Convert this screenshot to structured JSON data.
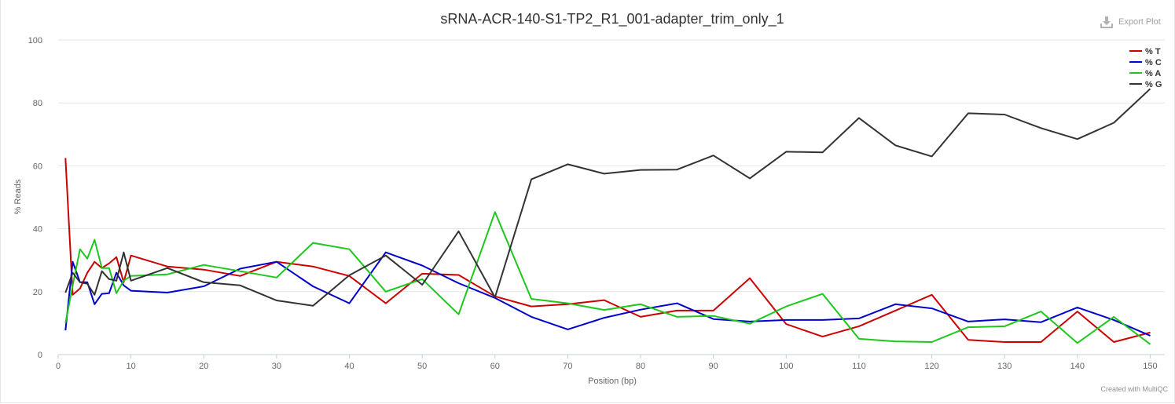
{
  "export": {
    "label": "Export Plot",
    "icon": "download-icon"
  },
  "credit": "Created with MultiQC",
  "chart_data": {
    "type": "line",
    "title": "sRNA-ACR-140-S1-TP2_R1_001-adapter_trim_only_1",
    "xlabel": "Position (bp)",
    "ylabel": "% Reads",
    "xlim": [
      0,
      152
    ],
    "ylim": [
      0,
      100
    ],
    "xticks": [
      0,
      10,
      20,
      30,
      40,
      50,
      60,
      70,
      80,
      90,
      100,
      110,
      120,
      130,
      140,
      150
    ],
    "yticks": [
      0,
      20,
      40,
      60,
      80,
      100
    ],
    "grid": true,
    "legend_position": "top-right",
    "x": [
      1,
      2,
      3,
      4,
      5,
      6,
      7,
      8,
      9,
      10,
      15,
      20,
      25,
      30,
      35,
      40,
      45,
      50,
      55,
      60,
      65,
      70,
      75,
      80,
      85,
      90,
      95,
      100,
      105,
      110,
      115,
      120,
      125,
      130,
      135,
      140,
      145,
      150
    ],
    "series": [
      {
        "name": "% T",
        "color": "#cc0000",
        "values": [
          62.5,
          19,
          21,
          26,
          29.5,
          27.5,
          29,
          31,
          23,
          31.5,
          28,
          27,
          25,
          29.5,
          28,
          25,
          16.3,
          25.7,
          25.3,
          18.5,
          15.3,
          16,
          17.3,
          12,
          14,
          14,
          24.3,
          9.7,
          5.7,
          9,
          14,
          19,
          4.7,
          4,
          4,
          13.7,
          4,
          7
        ]
      },
      {
        "name": "% C",
        "color": "#0000cc",
        "values": [
          7.7,
          29.5,
          23,
          23,
          16,
          19.3,
          19.5,
          26,
          22,
          20.3,
          19.7,
          21.7,
          27.3,
          29.5,
          21.7,
          16.3,
          32.5,
          28.3,
          22.7,
          18,
          12,
          8,
          11.7,
          14.3,
          16.3,
          11.3,
          10.5,
          11,
          11,
          11.5,
          16,
          14.7,
          10.5,
          11.2,
          10.3,
          15,
          11,
          6
        ]
      },
      {
        "name": "% A",
        "color": "#1ec71e",
        "values": [
          10,
          22,
          33.5,
          30.5,
          36.5,
          27.5,
          27.5,
          19.5,
          23.5,
          25,
          25.5,
          28.5,
          26.5,
          24.5,
          35.5,
          33.5,
          20,
          24,
          12.8,
          45.3,
          17.7,
          16.3,
          14.2,
          16,
          12,
          12.3,
          9.8,
          15.3,
          19.3,
          5,
          4.2,
          4,
          8.7,
          9,
          13.7,
          3.7,
          12,
          3.3
        ]
      },
      {
        "name": "% G",
        "color": "#333333",
        "values": [
          19.7,
          26,
          23,
          22.5,
          19,
          26.5,
          24,
          23.5,
          32.5,
          23.5,
          27.5,
          23,
          22,
          17.2,
          15.5,
          25.2,
          31.5,
          22.2,
          39.2,
          18.2,
          55.7,
          60.5,
          57.5,
          58.7,
          58.8,
          63.3,
          56,
          64.5,
          64.3,
          75.2,
          66.5,
          63,
          76.7,
          76.3,
          72,
          68.5,
          73.7,
          84.5
        ]
      }
    ]
  }
}
